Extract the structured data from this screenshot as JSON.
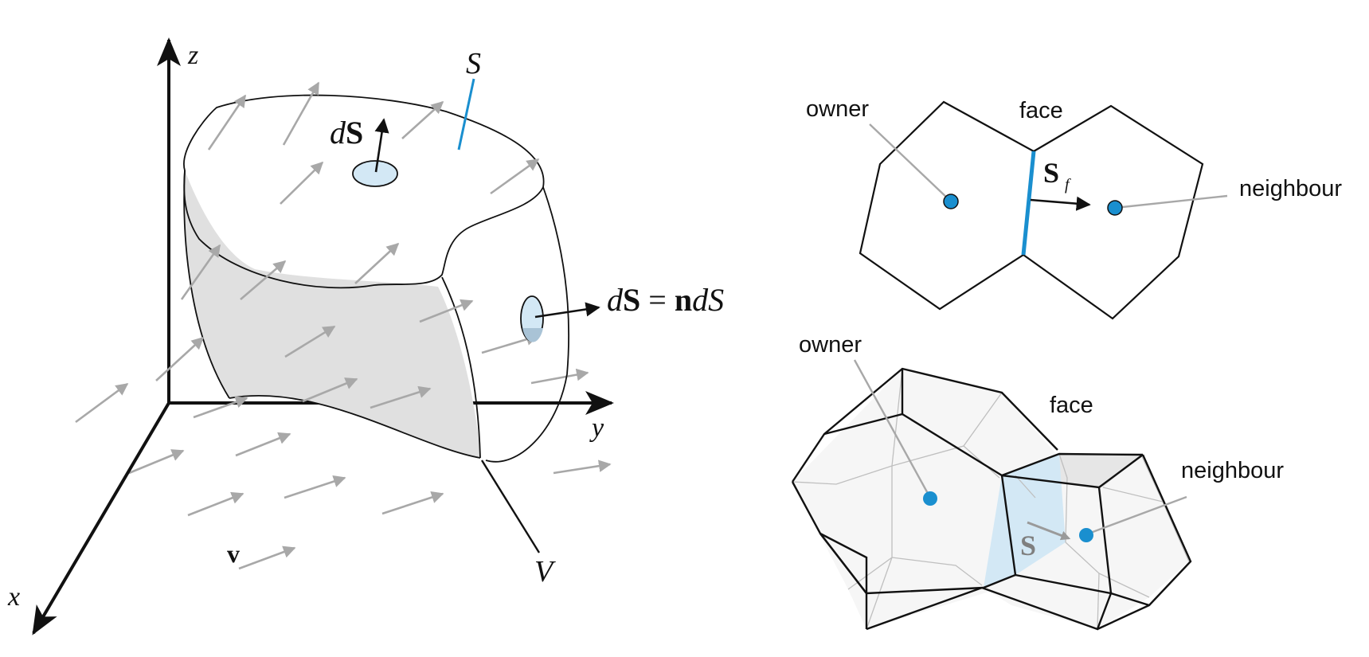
{
  "control_volume": {
    "axes": {
      "x": "x",
      "y": "y",
      "z": "z"
    },
    "surface_label": "S",
    "volume_label": "V",
    "velocity_label": "v",
    "top_vector": {
      "d": "d",
      "S": "S"
    },
    "side_vector": {
      "d1": "d",
      "S": "S",
      "eq": " = ",
      "n": "n",
      "d2": "d",
      "S2": "S"
    }
  },
  "cells_2d": {
    "owner_label": "owner",
    "face_label": "face",
    "neighbour_label": "neighbour",
    "face_vector": {
      "S": "S",
      "sub": "f"
    }
  },
  "cells_3d": {
    "owner_label": "owner",
    "face_label": "face",
    "neighbour_label": "neighbour",
    "face_vector": "S"
  },
  "colors": {
    "accent": "#1a8fcf",
    "face_fill": "#d3e8f5",
    "shade": "#e0e0e0",
    "arrow_grey": "#a8a8a8",
    "ink": "#111111"
  }
}
